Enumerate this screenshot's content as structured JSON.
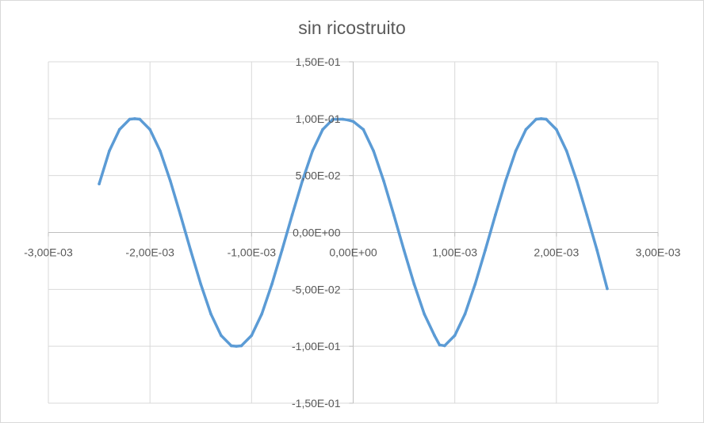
{
  "chart_data": {
    "type": "scatter",
    "title": "sin ricostruito",
    "xlabel": "",
    "ylabel": "",
    "xlim": [
      -0.003,
      0.003
    ],
    "ylim": [
      -0.15,
      0.15
    ],
    "x_ticks": [
      "-3,00E-03",
      "-2,00E-03",
      "-1,00E-03",
      "0,00E+00",
      "1,00E-03",
      "2,00E-03",
      "3,00E-03"
    ],
    "y_ticks": [
      "1,50E-01",
      "1,00E-01",
      "5,00E-02",
      "0,00E+00",
      "-5,00E-02",
      "-1,00E-01",
      "-1,50E-01"
    ],
    "grid": true,
    "legend": false,
    "series_color": "#5b9bd5",
    "series": [
      {
        "x": [
          -0.0025,
          -0.0024,
          -0.0023,
          -0.0022,
          -0.00215,
          -0.0021,
          -0.002,
          -0.0019,
          -0.0018,
          -0.0017,
          -0.0016,
          -0.0015,
          -0.0014,
          -0.0013,
          -0.0012,
          -0.00115,
          -0.0011,
          -0.001,
          -0.0009,
          -0.0008,
          -0.0007,
          -0.0006,
          -0.0005,
          -0.0004,
          -0.0003,
          -0.0002,
          -0.0001,
          -5e-05,
          0.0,
          0.0001,
          0.0002,
          0.0003,
          0.0004,
          0.0005,
          0.0006,
          0.0007,
          0.0008,
          0.00085,
          0.0009,
          0.001,
          0.0011,
          0.0012,
          0.0013,
          0.0014,
          0.0015,
          0.0016,
          0.0017,
          0.0018,
          0.00185,
          0.0019,
          0.002,
          0.0021,
          0.0022,
          0.0023,
          0.0024,
          0.0025
        ],
        "y": [
          0.0427,
          0.0717,
          0.0905,
          0.0995,
          0.1,
          0.0995,
          0.0905,
          0.0717,
          0.0454,
          0.0154,
          -0.0156,
          -0.0454,
          -0.0717,
          -0.0905,
          -0.0995,
          -0.1,
          -0.0995,
          -0.0905,
          -0.0717,
          -0.0454,
          -0.0154,
          0.0156,
          0.0454,
          0.0717,
          0.0905,
          0.0995,
          0.0995,
          0.0988,
          0.0976,
          0.0905,
          0.0717,
          0.0454,
          0.0154,
          -0.0156,
          -0.0454,
          -0.0717,
          -0.0905,
          -0.0988,
          -0.0995,
          -0.0905,
          -0.0717,
          -0.0454,
          -0.0154,
          0.0156,
          0.0454,
          0.0717,
          0.0905,
          0.0995,
          0.1,
          0.0995,
          0.0905,
          0.0717,
          0.0454,
          0.0154,
          -0.0156,
          -0.0494
        ]
      }
    ]
  }
}
